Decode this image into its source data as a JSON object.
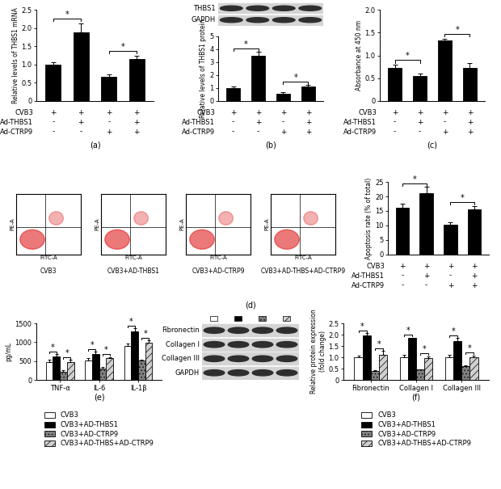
{
  "chart_data": [
    {
      "type": "bar",
      "caption": "(a)",
      "ylabel": "Relative levels of THBS1 mRNA",
      "categories": [
        null,
        null,
        null,
        null
      ],
      "values": [
        1.0,
        1.88,
        0.67,
        1.15
      ],
      "errors": [
        0.06,
        0.25,
        0.06,
        0.1
      ],
      "color": "#000000",
      "ylim": [
        0,
        2.5
      ],
      "yticks": [
        0,
        0.5,
        {
          "value": 1,
          "label": "1.0"
        },
        1.5,
        {
          "value": 2,
          "label": "2.0"
        },
        2.5
      ],
      "tick_labels": "y",
      "significance": [
        {
          "between": [
            0,
            1
          ],
          "label": "*"
        },
        {
          "between": [
            2,
            3
          ],
          "label": "*"
        }
      ]
    },
    {
      "type": "bar",
      "caption": "(b)",
      "ylabel": "Relative levels of THBS1 protein",
      "blot": [
        "THBS1",
        "GAPDH"
      ],
      "categories": [
        null,
        null,
        null,
        null
      ],
      "values": [
        1.0,
        3.5,
        0.55,
        1.12
      ],
      "errors": [
        0.1,
        0.3,
        0.12,
        0.12
      ],
      "color": "#000000",
      "ylim": [
        0,
        5
      ],
      "yticks": [
        0,
        1,
        2,
        3,
        4,
        5
      ],
      "tick_labels": "y",
      "significance": [
        {
          "between": [
            0,
            1
          ],
          "label": "*"
        },
        {
          "between": [
            2,
            3
          ],
          "label": "*"
        }
      ]
    },
    {
      "type": "bar",
      "caption": "(c)",
      "ylabel": "Absorbance at 450 nm",
      "categories": [
        null,
        null,
        null,
        null
      ],
      "values": [
        0.72,
        0.55,
        1.32,
        0.72
      ],
      "errors": [
        0.08,
        0.06,
        0.05,
        0.12
      ],
      "color": "#000000",
      "ylim": [
        0,
        2
      ],
      "yticks": [
        0,
        0.5,
        {
          "value": 1,
          "label": "1.0"
        },
        1.5,
        {
          "value": 2,
          "label": "2.0"
        }
      ],
      "tick_labels": "y",
      "significance": [
        {
          "between": [
            0,
            1
          ],
          "label": "*"
        },
        {
          "between": [
            2,
            3
          ],
          "label": "*"
        }
      ]
    },
    {
      "type": "bar",
      "caption": "(d)",
      "ylabel": "Apoptosis rate (% of total)",
      "flow_panels": {
        "xlabel": "FITC-A",
        "ylabel": "PE-A",
        "names": [
          "CVB3",
          "CVB3+AD-THBS1",
          "CVB3+AD-CTRP9",
          "CVB3+AD-THBS+AD-CTRP9"
        ]
      },
      "categories": [
        null,
        null,
        null,
        null
      ],
      "values": [
        16.2,
        21.2,
        10.2,
        15.5
      ],
      "errors": [
        1.2,
        2.0,
        0.8,
        1.2
      ],
      "color": "#000000",
      "ylim": [
        0,
        25
      ],
      "yticks": [
        0,
        5,
        10,
        15,
        20,
        25
      ],
      "tick_labels": "y",
      "significance": [
        {
          "between": [
            0,
            1
          ],
          "label": "*"
        },
        {
          "between": [
            2,
            3
          ],
          "label": "*"
        }
      ]
    },
    {
      "type": "bar",
      "caption": "(e)",
      "ylabel": "pg/mL",
      "categories": [
        "TNF-α",
        "IL-6",
        "IL-1β"
      ],
      "series": [
        {
          "name": "CVB3",
          "color": "#ffffff",
          "values": [
            480,
            520,
            900
          ],
          "errors": [
            50,
            50,
            70
          ]
        },
        {
          "name": "CVB3+AD-THBS1",
          "color": "#000000",
          "values": [
            620,
            690,
            1280
          ],
          "errors": [
            60,
            50,
            90
          ]
        },
        {
          "name": "CVB3+AD-CTRP9",
          "color": "#7f7f7f",
          "values": [
            210,
            300,
            510
          ],
          "errors": [
            40,
            40,
            20
          ]
        },
        {
          "name": "CVB3+AD-THBS+AD-CTRP9",
          "color": "#d0d0d0",
          "values": [
            480,
            570,
            980
          ],
          "errors": [
            50,
            40,
            60
          ]
        }
      ],
      "ylim": [
        0,
        1500
      ],
      "yticks": [
        0,
        500,
        1000,
        1500
      ],
      "legend": "bottom",
      "significance": [
        {
          "category": 0,
          "between": [
            0,
            1
          ],
          "label": "*"
        },
        {
          "category": 0,
          "between": [
            2,
            3
          ],
          "label": "*"
        },
        {
          "category": 1,
          "between": [
            0,
            1
          ],
          "label": "*"
        },
        {
          "category": 1,
          "between": [
            2,
            3
          ],
          "label": "*"
        },
        {
          "category": 2,
          "between": [
            0,
            1
          ],
          "label": "*"
        },
        {
          "category": 2,
          "between": [
            2,
            3
          ],
          "label": "*"
        }
      ]
    },
    {
      "type": "bar",
      "caption": "(f)",
      "ylabel": "Relative protein expression (fold change)",
      "blot": [
        "Fibronectin",
        "Collagen I",
        "Collagen III",
        "GAPDH"
      ],
      "categories": [
        "Fibronectin",
        "Collagen I",
        "Collagen III"
      ],
      "series": [
        {
          "name": "CVB3",
          "color": "#ffffff",
          "values": [
            1.0,
            1.0,
            1.0
          ],
          "errors": [
            0.08,
            0.12,
            0.1
          ]
        },
        {
          "name": "CVB3+AD-THBS1",
          "color": "#000000",
          "values": [
            1.95,
            1.85,
            1.7
          ],
          "errors": [
            0.12,
            0.02,
            0.15
          ]
        },
        {
          "name": "CVB3+AD-CTRP9",
          "color": "#7f7f7f",
          "values": [
            0.38,
            0.45,
            0.62
          ],
          "errors": [
            0.06,
            0.03,
            0.02
          ]
        },
        {
          "name": "CVB3+AD-THBS+AD-CTRP9",
          "color": "#d0d0d0",
          "values": [
            1.12,
            0.95,
            1.0
          ],
          "errors": [
            0.15,
            0.1,
            0.08
          ]
        }
      ],
      "ylim": [
        0,
        2.5
      ],
      "yticks": [
        0,
        0.5,
        {
          "value": 1,
          "label": "1.0"
        },
        1.5,
        {
          "value": 2,
          "label": "2.0"
        },
        2.5
      ],
      "legend": "bottom",
      "significance": [
        {
          "category": 0,
          "between": [
            0,
            1
          ],
          "label": "*"
        },
        {
          "category": 0,
          "between": [
            2,
            3
          ],
          "label": "*"
        },
        {
          "category": 1,
          "between": [
            0,
            1
          ],
          "label": "*"
        },
        {
          "category": 1,
          "between": [
            2,
            3
          ],
          "label": "*"
        },
        {
          "category": 2,
          "between": [
            0,
            1
          ],
          "label": "*"
        },
        {
          "category": 2,
          "between": [
            2,
            3
          ],
          "label": "*"
        }
      ]
    }
  ],
  "treatment_table": {
    "rows": [
      {
        "name": "CVB3",
        "marks": [
          "+",
          "+",
          "+",
          "+"
        ]
      },
      {
        "name": "Ad-THBS1",
        "marks": [
          "-",
          "+",
          "-",
          "+"
        ]
      },
      {
        "name": "Ad-CTRP9",
        "marks": [
          "-",
          "-",
          "+",
          "+"
        ]
      }
    ]
  }
}
